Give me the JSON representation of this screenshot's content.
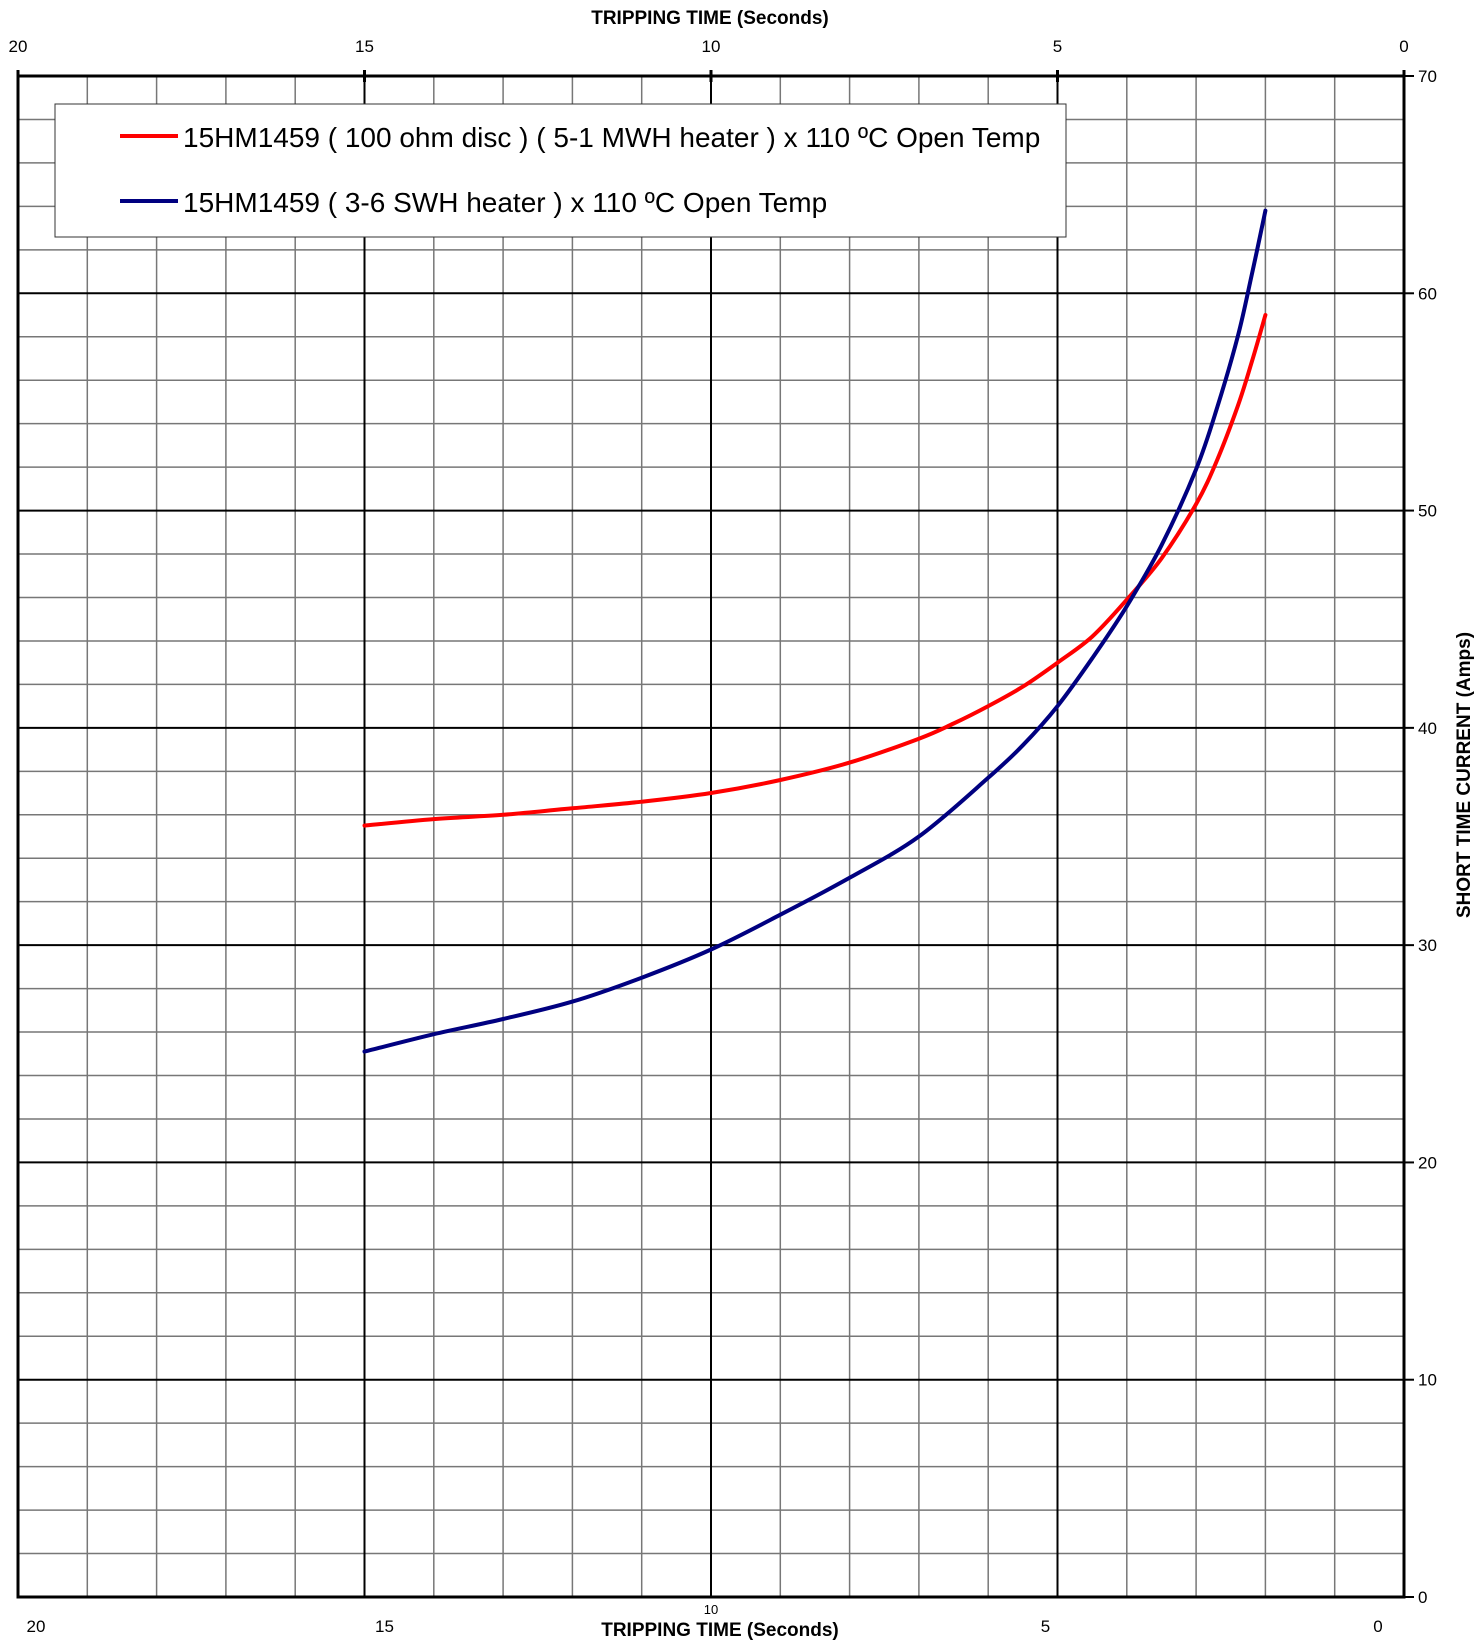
{
  "chart_data": {
    "type": "line",
    "title": "",
    "xlabel": "TRIPPING TIME (Seconds)",
    "ylabel": "SHORT TIME CURRENT (Amps)",
    "xlim": [
      20,
      0
    ],
    "ylim": [
      0,
      70
    ],
    "x_ticks": [
      "20",
      "15",
      "10",
      "5",
      "0"
    ],
    "x_ticks_bottom": [
      "20",
      "15",
      "5",
      "0"
    ],
    "x_tick_bottom_small": "10",
    "y_ticks": [
      "70",
      "60",
      "50",
      "40",
      "30",
      "20",
      "10",
      "0"
    ],
    "grid": true,
    "legend_position": "top-left",
    "series": [
      {
        "name": "15HM1459  ( 100 ohm disc ) ( 5-1 MWH heater ) x 110 ºC Open Temp",
        "color": "#ff0000",
        "x": [
          15,
          14,
          13,
          12,
          11,
          10,
          9,
          8,
          7,
          6.5,
          6,
          5.5,
          5,
          4.5,
          4,
          3.5,
          3,
          2.7,
          2.4,
          2.2,
          2
        ],
        "y": [
          35.5,
          35.8,
          36.0,
          36.3,
          36.6,
          37.0,
          37.6,
          38.4,
          39.5,
          40.2,
          41.0,
          41.9,
          43.0,
          44.2,
          45.9,
          47.8,
          50.3,
          52.3,
          54.8,
          56.8,
          59.0
        ]
      },
      {
        "name": "15HM1459 ( 3-6 SWH heater ) x 110 ºC Open Temp",
        "color": "#000080",
        "x": [
          15,
          14,
          13,
          12,
          11,
          10,
          9,
          8,
          7,
          6,
          5.5,
          5,
          4.5,
          4,
          3.5,
          3,
          2.7,
          2.4,
          2.2,
          2
        ],
        "y": [
          25.1,
          25.9,
          26.6,
          27.4,
          28.5,
          29.8,
          31.4,
          33.1,
          35.0,
          37.7,
          39.2,
          41.0,
          43.2,
          45.6,
          48.4,
          51.9,
          54.7,
          58.0,
          60.8,
          63.8
        ]
      }
    ]
  }
}
